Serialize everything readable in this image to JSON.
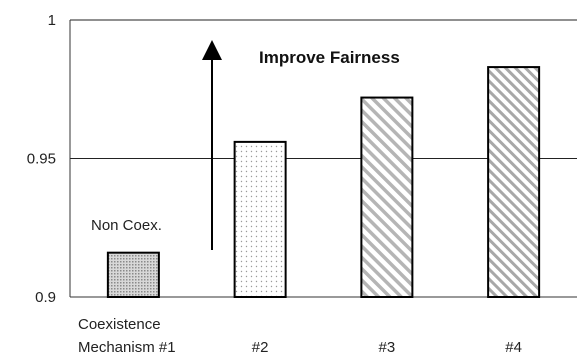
{
  "chart_data": {
    "type": "bar",
    "categories": [
      [
        "Coexistence",
        "Mechanism #1"
      ],
      [
        "#2"
      ],
      [
        "#3"
      ],
      [
        "#4"
      ]
    ],
    "values": [
      0.916,
      0.956,
      0.972,
      0.983
    ],
    "ylim": [
      0.9,
      1.0
    ],
    "yticks": [
      0.9,
      0.95,
      1
    ],
    "ytick_labels": [
      "0.9",
      "0.95",
      "1"
    ],
    "grid": true,
    "annotations": {
      "arrow_label": "Improve Fairness",
      "baseline_label": "Non Coex."
    },
    "bar_patterns": [
      "fine-dots",
      "sparse-dots",
      "diagonal-stripes",
      "diagonal-stripes-dense"
    ]
  }
}
